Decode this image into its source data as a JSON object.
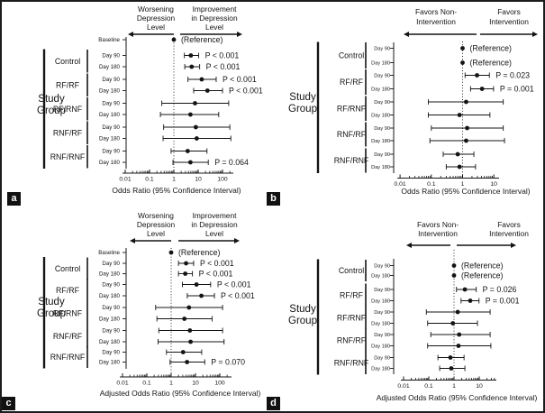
{
  "colors": {
    "ink": "#141414",
    "background": "#ffffff"
  },
  "study_group_label": [
    "Study",
    "Group"
  ],
  "chart_data": [
    {
      "id": "a",
      "panel_label": "a",
      "type": "forest_plot",
      "x_scale": "log",
      "xlabel": "Odds Ratio (95% Confidence Interval)",
      "x_ticks": [
        "0.01",
        "0.1",
        "1",
        "10",
        "100"
      ],
      "direction_left": [
        "Worsening",
        "Depression",
        "Level"
      ],
      "direction_right": [
        "Improvement",
        "in Depression",
        "Level"
      ],
      "ylabel_lines": [
        "Study",
        "Group"
      ],
      "rows": [
        {
          "group": "",
          "label": "Baseline",
          "or": 1,
          "lo": null,
          "hi": null,
          "annotation": "(Reference)"
        },
        {
          "group": "Control",
          "label": "Day 90",
          "or": 5,
          "lo": 2.7,
          "hi": 10.5,
          "annotation": "P < 0.001"
        },
        {
          "group": "Control",
          "label": "Day 180",
          "or": 5.4,
          "lo": 2.8,
          "hi": 11.5,
          "annotation": "P < 0.001"
        },
        {
          "group": "RF/RF",
          "label": "Day 90",
          "or": 14,
          "lo": 3.8,
          "hi": 55,
          "annotation": "P < 0.001"
        },
        {
          "group": "RF/RF",
          "label": "Day 180",
          "or": 24,
          "lo": 6.5,
          "hi": 100,
          "annotation": "P < 0.001"
        },
        {
          "group": "RF/RNF",
          "label": "Day 90",
          "or": 7.4,
          "lo": 0.32,
          "hi": 180,
          "annotation": null
        },
        {
          "group": "RF/RNF",
          "label": "Day 180",
          "or": 4.8,
          "lo": 0.28,
          "hi": 70,
          "annotation": null
        },
        {
          "group": "RNF/RF",
          "label": "Day 90",
          "or": 8,
          "lo": 0.38,
          "hi": 200,
          "annotation": null
        },
        {
          "group": "RNF/RF",
          "label": "Day 180",
          "or": 8.7,
          "lo": 0.36,
          "hi": 220,
          "annotation": null
        },
        {
          "group": "RNF/RNF",
          "label": "Day 90",
          "or": 3.7,
          "lo": 0.77,
          "hi": 23,
          "annotation": null
        },
        {
          "group": "RNF/RNF",
          "label": "Day 180",
          "or": 4.8,
          "lo": 0.92,
          "hi": 26,
          "annotation": "P = 0.064"
        }
      ]
    },
    {
      "id": "b",
      "panel_label": "b",
      "type": "forest_plot",
      "x_scale": "log",
      "xlabel": "Odds Ratio (95% Confidence Interval)",
      "x_ticks": [
        "0.01",
        "0.1",
        "1",
        "10"
      ],
      "direction_left": [
        "Favors Non-",
        "Intervention"
      ],
      "direction_right": [
        "Favors",
        "Intervention"
      ],
      "ylabel_lines": [
        "Study",
        "Group"
      ],
      "rows": [
        {
          "group": "Control",
          "label": "Day 90",
          "or": 1,
          "lo": null,
          "hi": null,
          "annotation": "(Reference)"
        },
        {
          "group": "Control",
          "label": "Day 180",
          "or": 1,
          "lo": null,
          "hi": null,
          "annotation": "(Reference)"
        },
        {
          "group": "RF/RF",
          "label": "Day 90",
          "or": 2.9,
          "lo": 1.2,
          "hi": 7.2,
          "annotation": "P = 0.023"
        },
        {
          "group": "RF/RF",
          "label": "Day 180",
          "or": 4.2,
          "lo": 1.8,
          "hi": 9.8,
          "annotation": "P = 0.001"
        },
        {
          "group": "RF/RNF",
          "label": "Day 90",
          "or": 1.3,
          "lo": 0.08,
          "hi": 20,
          "annotation": null
        },
        {
          "group": "RF/RNF",
          "label": "Day 180",
          "or": 0.8,
          "lo": 0.08,
          "hi": 7.5,
          "annotation": null
        },
        {
          "group": "RNF/RF",
          "label": "Day 90",
          "or": 1.4,
          "lo": 0.1,
          "hi": 20,
          "annotation": null
        },
        {
          "group": "RNF/RF",
          "label": "Day 180",
          "or": 1.3,
          "lo": 0.09,
          "hi": 22,
          "annotation": null
        },
        {
          "group": "RNF/RNF",
          "label": "Day 90",
          "or": 0.7,
          "lo": 0.24,
          "hi": 2.3,
          "annotation": null
        },
        {
          "group": "RNF/RNF",
          "label": "Day 180",
          "or": 0.8,
          "lo": 0.3,
          "hi": 2.6,
          "annotation": null
        }
      ]
    },
    {
      "id": "c",
      "panel_label": "c",
      "type": "forest_plot",
      "x_scale": "log",
      "xlabel": "Adjusted Odds Ratio (95% Confidence Interval)",
      "x_ticks": [
        "0.01",
        "0.1",
        "1",
        "10",
        "100"
      ],
      "direction_left": [
        "Worsening",
        "Depression",
        "Level"
      ],
      "direction_right": [
        "Improvement",
        "in Depression",
        "Level"
      ],
      "ylabel_lines": [
        "Study",
        "Group"
      ],
      "rows": [
        {
          "group": "",
          "label": "Baseline",
          "or": 1,
          "lo": null,
          "hi": null,
          "annotation": "(Reference)"
        },
        {
          "group": "Control",
          "label": "Day 90",
          "or": 4.1,
          "lo": 2.0,
          "hi": 8.4,
          "annotation": "P < 0.001"
        },
        {
          "group": "Control",
          "label": "Day 180",
          "or": 3.8,
          "lo": 2.0,
          "hi": 7.5,
          "annotation": "P < 0.001"
        },
        {
          "group": "RF/RF",
          "label": "Day 90",
          "or": 11,
          "lo": 2.9,
          "hi": 42,
          "annotation": "P < 0.001"
        },
        {
          "group": "RF/RF",
          "label": "Day 180",
          "or": 17.5,
          "lo": 4.6,
          "hi": 60,
          "annotation": "P < 0.001"
        },
        {
          "group": "RF/RNF",
          "label": "Day 90",
          "or": 5.4,
          "lo": 0.23,
          "hi": 130,
          "annotation": null
        },
        {
          "group": "RF/RNF",
          "label": "Day 180",
          "or": 3.5,
          "lo": 0.26,
          "hi": 48,
          "annotation": null
        },
        {
          "group": "RNF/RF",
          "label": "Day 90",
          "or": 5.9,
          "lo": 0.31,
          "hi": 130,
          "annotation": null
        },
        {
          "group": "RNF/RF",
          "label": "Day 180",
          "or": 6.3,
          "lo": 0.29,
          "hi": 150,
          "annotation": null
        },
        {
          "group": "RNF/RNF",
          "label": "Day 90",
          "or": 3.1,
          "lo": 0.64,
          "hi": 18,
          "annotation": null
        },
        {
          "group": "RNF/RNF",
          "label": "Day 180",
          "or": 4.5,
          "lo": 0.9,
          "hi": 24,
          "annotation": "P = 0.070"
        }
      ]
    },
    {
      "id": "d",
      "panel_label": "d",
      "type": "forest_plot",
      "x_scale": "log",
      "xlabel": "Adjusted Odds Ratio (95% Confidence Interval)",
      "x_ticks": [
        "0.01",
        "0.1",
        "1",
        "10"
      ],
      "direction_left": [
        "Favors Non-",
        "Intervention"
      ],
      "direction_right": [
        "Favors",
        "Intervention"
      ],
      "ylabel_lines": [
        "Study",
        "Group"
      ],
      "rows": [
        {
          "group": "Control",
          "label": "Day 90",
          "or": 1,
          "lo": null,
          "hi": null,
          "annotation": "(Reference)"
        },
        {
          "group": "Control",
          "label": "Day 180",
          "or": 1,
          "lo": null,
          "hi": null,
          "annotation": "(Reference)"
        },
        {
          "group": "RF/RF",
          "label": "Day 90",
          "or": 2.7,
          "lo": 1.25,
          "hi": 7.6,
          "annotation": "P = 0.026"
        },
        {
          "group": "RF/RF",
          "label": "Day 180",
          "or": 4.4,
          "lo": 1.9,
          "hi": 9.8,
          "annotation": "P = 0.001"
        },
        {
          "group": "RF/RNF",
          "label": "Day 90",
          "or": 1.4,
          "lo": 0.08,
          "hi": 27,
          "annotation": null
        },
        {
          "group": "RF/RNF",
          "label": "Day 180",
          "or": 0.9,
          "lo": 0.09,
          "hi": 8.5,
          "annotation": null
        },
        {
          "group": "RNF/RF",
          "label": "Day 90",
          "or": 1.6,
          "lo": 0.12,
          "hi": 27,
          "annotation": null
        },
        {
          "group": "RNF/RF",
          "label": "Day 180",
          "or": 1.5,
          "lo": 0.09,
          "hi": 29,
          "annotation": null
        },
        {
          "group": "RNF/RNF",
          "label": "Day 90",
          "or": 0.72,
          "lo": 0.23,
          "hi": 2.5,
          "annotation": null
        },
        {
          "group": "RNF/RNF",
          "label": "Day 180",
          "or": 0.78,
          "lo": 0.27,
          "hi": 2.7,
          "annotation": null
        }
      ]
    }
  ]
}
